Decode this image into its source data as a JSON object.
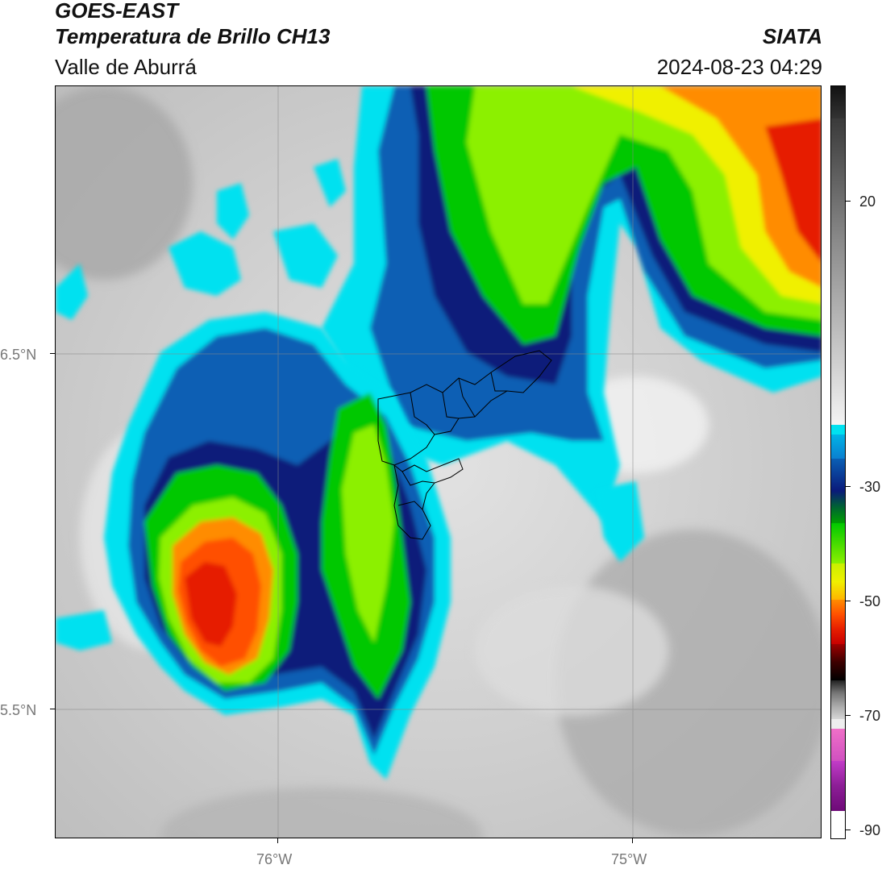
{
  "header": {
    "satellite": "GOES-EAST",
    "product": "Temperatura de Brillo CH13",
    "region": "Valle de Aburrá",
    "agency": "SIATA",
    "timestamp": "2024-08-23 04:29"
  },
  "axes": {
    "lat_labels": [
      "6.5°N",
      "5.5°N"
    ],
    "lon_labels": [
      "76°W",
      "75°W"
    ]
  },
  "colorbar": {
    "unit": "",
    "min": -90,
    "max": 40,
    "tick_labels": [
      "20",
      "-30",
      "-50",
      "-70",
      "-90"
    ],
    "tick_values": [
      20,
      -30,
      -50,
      -70,
      -90
    ]
  },
  "colors": {
    "warm_gray": "#c8c8c8",
    "cyan": "#00e1f0",
    "blue": "#0a5fb4",
    "navy": "#0a1a7a",
    "green": "#00c800",
    "lime": "#8cf000",
    "yellow": "#f0f000",
    "orange": "#ff8c00",
    "red": "#e61e00",
    "magenta": "#c23cc8"
  }
}
